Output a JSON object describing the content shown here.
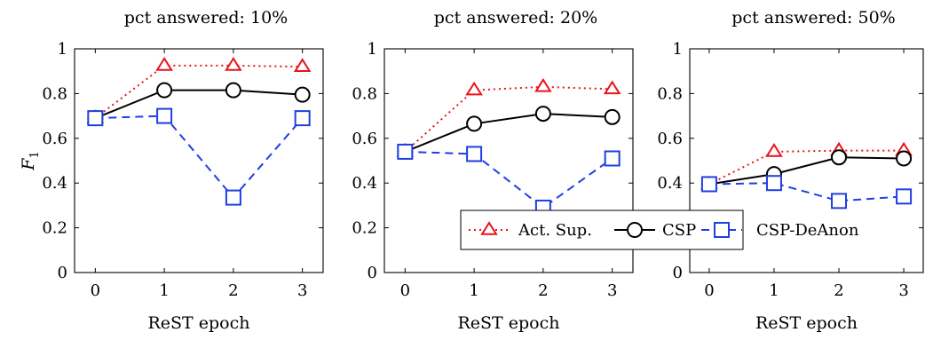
{
  "colors": {
    "act_sup": "#e8141b",
    "csp": "#000000",
    "csp_deanon": "#1f3fe0"
  },
  "legend": {
    "placement": "lower-right",
    "entries": [
      {
        "label": "Act. Sup.",
        "series_index": 0
      },
      {
        "label": "CSP",
        "series_index": 1
      },
      {
        "label": "CSP-DeAnon",
        "series_index": 2
      }
    ]
  },
  "chart_data": [
    {
      "type": "line",
      "title": "pct answered: 10%",
      "xlabel": "ReST epoch",
      "ylabel": "F",
      "ylabel_subscript": "1",
      "x": [
        0,
        1,
        2,
        3
      ],
      "xlim": [
        -0.3,
        3.3
      ],
      "ylim": [
        0,
        1
      ],
      "xticks": [
        "0",
        "1",
        "2",
        "3"
      ],
      "yticks": [
        "0",
        "0.2",
        "0.4",
        "0.6",
        "0.8",
        "1"
      ],
      "grid": false,
      "series": [
        {
          "name": "Act. Sup.",
          "values": [
            0.69,
            0.925,
            0.925,
            0.92
          ],
          "style": "dotted",
          "marker": "triangle",
          "color": "#e8141b"
        },
        {
          "name": "CSP",
          "values": [
            0.69,
            0.815,
            0.815,
            0.795
          ],
          "style": "solid",
          "marker": "circle",
          "color": "#000000"
        },
        {
          "name": "CSP-DeAnon",
          "values": [
            0.69,
            0.7,
            0.335,
            0.69
          ],
          "style": "dashed",
          "marker": "square",
          "color": "#1f3fe0"
        }
      ]
    },
    {
      "type": "line",
      "title": "pct answered: 20%",
      "xlabel": "ReST epoch",
      "ylabel": "",
      "ylabel_subscript": "",
      "x": [
        0,
        1,
        2,
        3
      ],
      "xlim": [
        -0.3,
        3.3
      ],
      "ylim": [
        0,
        1
      ],
      "xticks": [
        "0",
        "1",
        "2",
        "3"
      ],
      "yticks": [
        "0",
        "0.2",
        "0.4",
        "0.6",
        "0.8",
        "1"
      ],
      "grid": false,
      "series": [
        {
          "name": "Act. Sup.",
          "values": [
            0.54,
            0.815,
            0.83,
            0.82
          ],
          "style": "dotted",
          "marker": "triangle",
          "color": "#e8141b"
        },
        {
          "name": "CSP",
          "values": [
            0.54,
            0.665,
            0.71,
            0.695
          ],
          "style": "solid",
          "marker": "circle",
          "color": "#000000"
        },
        {
          "name": "CSP-DeAnon",
          "values": [
            0.54,
            0.53,
            0.29,
            0.51
          ],
          "style": "dashed",
          "marker": "square",
          "color": "#1f3fe0"
        }
      ]
    },
    {
      "type": "line",
      "title": "pct answered: 50%",
      "xlabel": "ReST epoch",
      "ylabel": "",
      "ylabel_subscript": "",
      "x": [
        0,
        1,
        2,
        3
      ],
      "xlim": [
        -0.3,
        3.3
      ],
      "ylim": [
        0,
        1
      ],
      "xticks": [
        "0",
        "1",
        "2",
        "3"
      ],
      "yticks": [
        "0",
        "0.2",
        "0.4",
        "0.6",
        "0.8",
        "1"
      ],
      "grid": false,
      "series": [
        {
          "name": "Act. Sup.",
          "values": [
            0.395,
            0.54,
            0.545,
            0.545
          ],
          "style": "dotted",
          "marker": "triangle",
          "color": "#e8141b"
        },
        {
          "name": "CSP",
          "values": [
            0.395,
            0.44,
            0.515,
            0.51
          ],
          "style": "solid",
          "marker": "circle",
          "color": "#000000"
        },
        {
          "name": "CSP-DeAnon",
          "values": [
            0.395,
            0.4,
            0.32,
            0.34
          ],
          "style": "dashed",
          "marker": "square",
          "color": "#1f3fe0"
        }
      ]
    }
  ]
}
